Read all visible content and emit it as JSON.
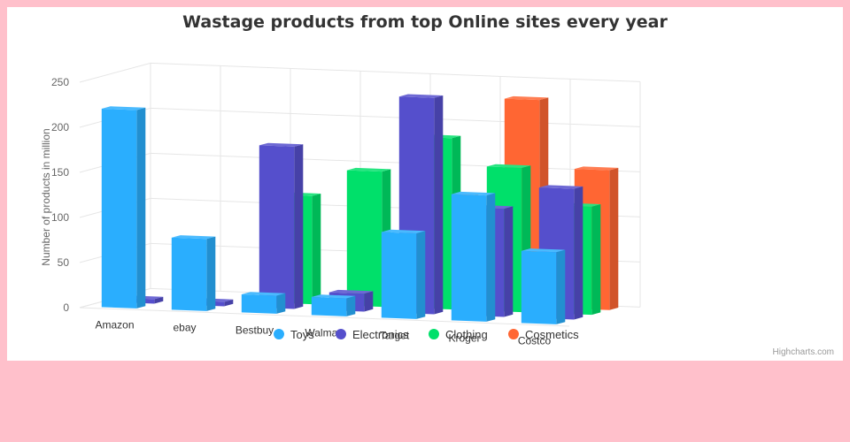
{
  "credits": "Highcharts.com",
  "chart_data": {
    "type": "bar",
    "title": "Wastage products from top Online sites every year",
    "xlabel": "",
    "ylabel": "Number of products in million",
    "ylim": [
      0,
      250
    ],
    "yticks": [
      0,
      50,
      100,
      150,
      200,
      250
    ],
    "categories": [
      "Amazon",
      "ebay",
      "Bestbuy",
      "Walmart",
      "Target",
      "Kroger",
      "Costco"
    ],
    "grid": true,
    "legend_position": "bottom",
    "render_style": "3d-column",
    "colors": {
      "Toys": "#2aaefe",
      "Electronics": "#554fcc",
      "Clothing": "#00e06a",
      "Cosmetics": "#ff6633"
    },
    "series": [
      {
        "name": "Toys",
        "values": [
          220,
          80,
          20,
          20,
          95,
          140,
          80
        ]
      },
      {
        "name": "Electronics",
        "values": [
          5,
          5,
          180,
          20,
          240,
          120,
          145
        ]
      },
      {
        "name": "Clothing",
        "values": [
          0,
          0,
          120,
          150,
          190,
          160,
          120
        ]
      },
      {
        "name": "Cosmetics",
        "values": [
          0,
          0,
          0,
          20,
          120,
          230,
          155
        ]
      }
    ]
  }
}
